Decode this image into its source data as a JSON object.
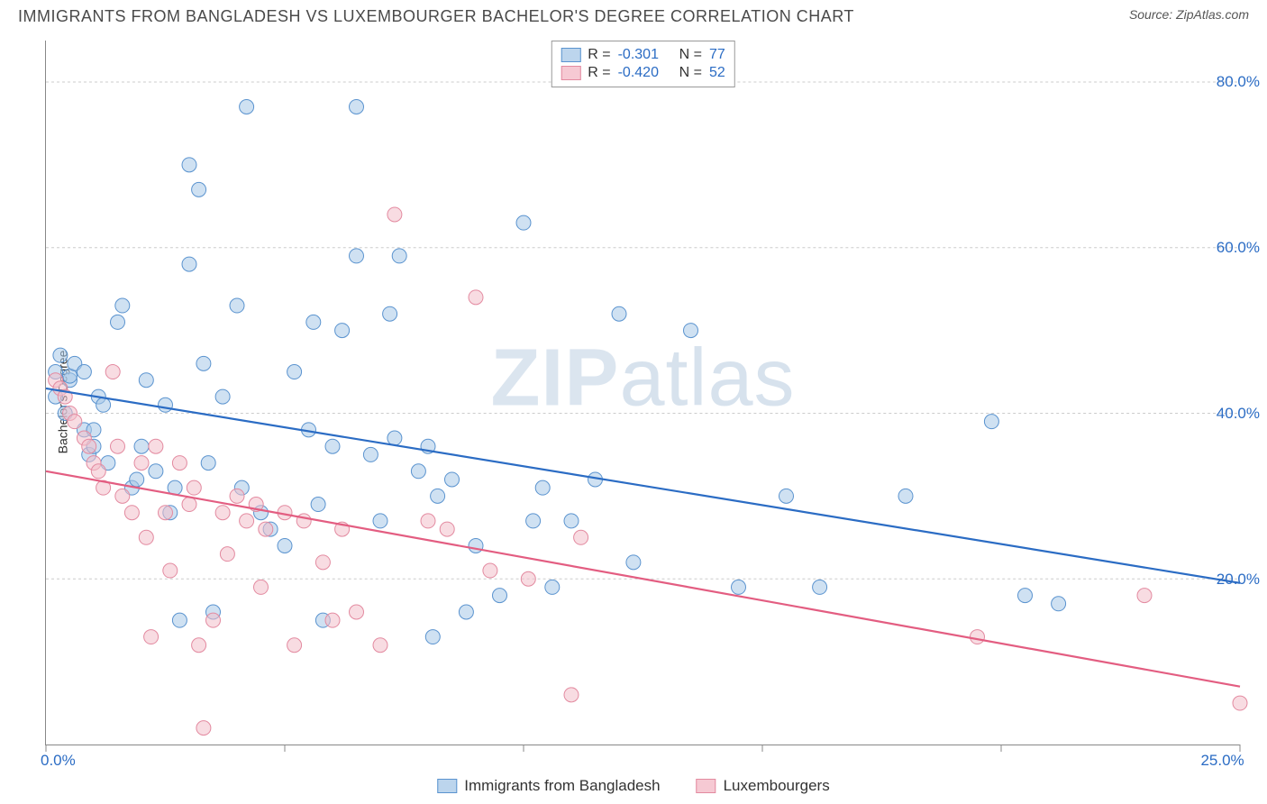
{
  "title": "IMMIGRANTS FROM BANGLADESH VS LUXEMBOURGER BACHELOR'S DEGREE CORRELATION CHART",
  "source_prefix": "Source: ",
  "source_name": "ZipAtlas.com",
  "watermark_zip": "ZIP",
  "watermark_atlas": "atlas",
  "ylabel": "Bachelor's Degree",
  "legend_top": {
    "series": [
      {
        "r_label": "R =",
        "r_value": "-0.301",
        "n_label": "N =",
        "n_value": "77",
        "fill": "#bcd5ed",
        "stroke": "#5a93cf"
      },
      {
        "r_label": "R =",
        "r_value": "-0.420",
        "n_label": "N =",
        "n_value": "52",
        "fill": "#f6c9d3",
        "stroke": "#e38aa0"
      }
    ]
  },
  "legend_bottom": {
    "items": [
      {
        "label": "Immigrants from Bangladesh",
        "fill": "#bcd5ed",
        "stroke": "#5a93cf"
      },
      {
        "label": "Luxembourgers",
        "fill": "#f6c9d3",
        "stroke": "#e38aa0"
      }
    ]
  },
  "chart": {
    "type": "scatter",
    "xlim": [
      0,
      25
    ],
    "ylim": [
      0,
      85
    ],
    "x_ticks": [
      0,
      5,
      10,
      15,
      20,
      25
    ],
    "y_gridlines": [
      20,
      40,
      60,
      80
    ],
    "x_axis_labels": [
      {
        "value": 0,
        "text": "0.0%"
      },
      {
        "value": 25,
        "text": "25.0%"
      }
    ],
    "y_axis_labels": [
      {
        "value": 20,
        "text": "20.0%"
      },
      {
        "value": 40,
        "text": "40.0%"
      },
      {
        "value": 60,
        "text": "60.0%"
      },
      {
        "value": 80,
        "text": "80.0%"
      }
    ],
    "background_color": "#ffffff",
    "grid_color": "#cccccc",
    "marker_radius": 8,
    "marker_opacity": 0.55,
    "trend_line_width": 2.2,
    "series": [
      {
        "name": "Immigrants from Bangladesh",
        "color_fill": "#a7c8e8",
        "color_stroke": "#5a93cf",
        "trend_color": "#2b6cc4",
        "trend": {
          "x1": 0,
          "y1": 43,
          "x2": 25,
          "y2": 19.5
        },
        "points": [
          [
            0.2,
            42
          ],
          [
            0.2,
            45
          ],
          [
            0.3,
            47
          ],
          [
            0.4,
            40
          ],
          [
            0.5,
            44
          ],
          [
            0.5,
            44.5
          ],
          [
            0.6,
            46
          ],
          [
            0.8,
            45
          ],
          [
            0.8,
            38
          ],
          [
            0.9,
            35
          ],
          [
            1.0,
            36
          ],
          [
            1.0,
            38
          ],
          [
            1.1,
            42
          ],
          [
            1.2,
            41
          ],
          [
            1.3,
            34
          ],
          [
            1.5,
            51
          ],
          [
            1.6,
            53
          ],
          [
            1.8,
            31
          ],
          [
            1.9,
            32
          ],
          [
            2.0,
            36
          ],
          [
            2.1,
            44
          ],
          [
            2.3,
            33
          ],
          [
            2.5,
            41
          ],
          [
            2.6,
            28
          ],
          [
            2.7,
            31
          ],
          [
            2.8,
            15
          ],
          [
            3.0,
            70
          ],
          [
            3.0,
            58
          ],
          [
            3.2,
            67
          ],
          [
            3.3,
            46
          ],
          [
            3.4,
            34
          ],
          [
            3.5,
            16
          ],
          [
            3.7,
            42
          ],
          [
            4.0,
            53
          ],
          [
            4.1,
            31
          ],
          [
            4.2,
            77
          ],
          [
            4.5,
            28
          ],
          [
            4.7,
            26
          ],
          [
            5.0,
            24
          ],
          [
            5.2,
            45
          ],
          [
            5.5,
            38
          ],
          [
            5.6,
            51
          ],
          [
            5.7,
            29
          ],
          [
            5.8,
            15
          ],
          [
            6.0,
            36
          ],
          [
            6.2,
            50
          ],
          [
            6.5,
            77
          ],
          [
            6.5,
            59
          ],
          [
            6.8,
            35
          ],
          [
            7.0,
            27
          ],
          [
            7.2,
            52
          ],
          [
            7.3,
            37
          ],
          [
            7.4,
            59
          ],
          [
            7.8,
            33
          ],
          [
            8.0,
            36
          ],
          [
            8.1,
            13
          ],
          [
            8.2,
            30
          ],
          [
            8.5,
            32
          ],
          [
            8.8,
            16
          ],
          [
            9.0,
            24
          ],
          [
            9.5,
            18
          ],
          [
            10.0,
            63
          ],
          [
            10.2,
            27
          ],
          [
            10.4,
            31
          ],
          [
            10.6,
            19
          ],
          [
            11.0,
            27
          ],
          [
            11.5,
            32
          ],
          [
            12.0,
            52
          ],
          [
            12.3,
            22
          ],
          [
            13.5,
            50
          ],
          [
            14.5,
            19
          ],
          [
            15.5,
            30
          ],
          [
            16.2,
            19
          ],
          [
            18.0,
            30
          ],
          [
            19.8,
            39
          ],
          [
            20.5,
            18
          ],
          [
            21.2,
            17
          ]
        ]
      },
      {
        "name": "Luxembourgers",
        "color_fill": "#f3bfca",
        "color_stroke": "#e38aa0",
        "trend_color": "#e35d81",
        "trend": {
          "x1": 0,
          "y1": 33,
          "x2": 25,
          "y2": 7
        },
        "points": [
          [
            0.2,
            44
          ],
          [
            0.3,
            43
          ],
          [
            0.4,
            42
          ],
          [
            0.5,
            40
          ],
          [
            0.6,
            39
          ],
          [
            0.8,
            37
          ],
          [
            0.9,
            36
          ],
          [
            1.0,
            34
          ],
          [
            1.1,
            33
          ],
          [
            1.2,
            31
          ],
          [
            1.4,
            45
          ],
          [
            1.5,
            36
          ],
          [
            1.6,
            30
          ],
          [
            1.8,
            28
          ],
          [
            2.0,
            34
          ],
          [
            2.1,
            25
          ],
          [
            2.2,
            13
          ],
          [
            2.3,
            36
          ],
          [
            2.5,
            28
          ],
          [
            2.6,
            21
          ],
          [
            2.8,
            34
          ],
          [
            3.0,
            29
          ],
          [
            3.1,
            31
          ],
          [
            3.2,
            12
          ],
          [
            3.3,
            2
          ],
          [
            3.5,
            15
          ],
          [
            3.7,
            28
          ],
          [
            3.8,
            23
          ],
          [
            4.0,
            30
          ],
          [
            4.2,
            27
          ],
          [
            4.4,
            29
          ],
          [
            4.5,
            19
          ],
          [
            4.6,
            26
          ],
          [
            5.0,
            28
          ],
          [
            5.2,
            12
          ],
          [
            5.4,
            27
          ],
          [
            5.8,
            22
          ],
          [
            6.0,
            15
          ],
          [
            6.2,
            26
          ],
          [
            6.5,
            16
          ],
          [
            7.0,
            12
          ],
          [
            7.3,
            64
          ],
          [
            8.0,
            27
          ],
          [
            8.4,
            26
          ],
          [
            9.0,
            54
          ],
          [
            9.3,
            21
          ],
          [
            10.1,
            20
          ],
          [
            11.0,
            6
          ],
          [
            11.2,
            25
          ],
          [
            19.5,
            13
          ],
          [
            23.0,
            18
          ],
          [
            25.0,
            5
          ]
        ]
      }
    ]
  }
}
